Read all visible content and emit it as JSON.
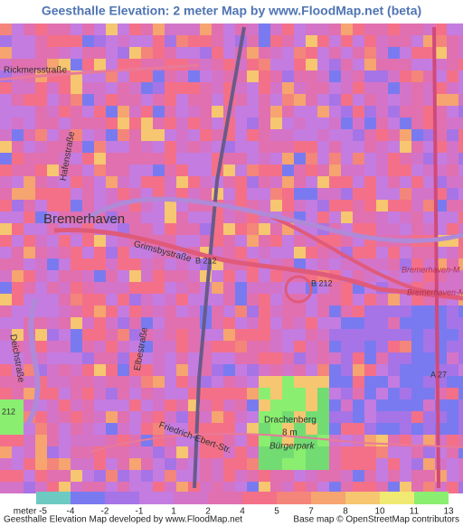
{
  "header": {
    "title": "Geesthalle Elevation: 2 meter Map by www.FloodMap.net (beta)"
  },
  "map": {
    "labels": [
      "Rickmersstraße",
      "Bremerhaven",
      "Grimsbystraße",
      "B 212",
      "B 212",
      "Bremerhaven-M",
      "Bremerhaven-M",
      "A 27",
      "Drachenberg",
      "8 m",
      "Bürgerpark",
      "Hafenstraße",
      "Elbestraße",
      "Deichstraße",
      "Friedrich-Ebert-Str.",
      "212"
    ]
  },
  "legend": {
    "labels": [
      "meter -5",
      "-4",
      "-2",
      "-1",
      "1",
      "2",
      "4",
      "5",
      "7",
      "8",
      "10",
      "11",
      "13"
    ],
    "colors": [
      "#6ccac2",
      "#7a7af0",
      "#a674e6",
      "#c47ce0",
      "#d474c8",
      "#e070b0",
      "#f47088",
      "#f4857a",
      "#f6a470",
      "#f6c670",
      "#f0ea72",
      "#8aee70",
      "#72dc72"
    ]
  },
  "footer": {
    "left": "Geesthalle Elevation Map developed by www.FloodMap.net",
    "right": "Base map © OpenStreetMap contributors"
  }
}
